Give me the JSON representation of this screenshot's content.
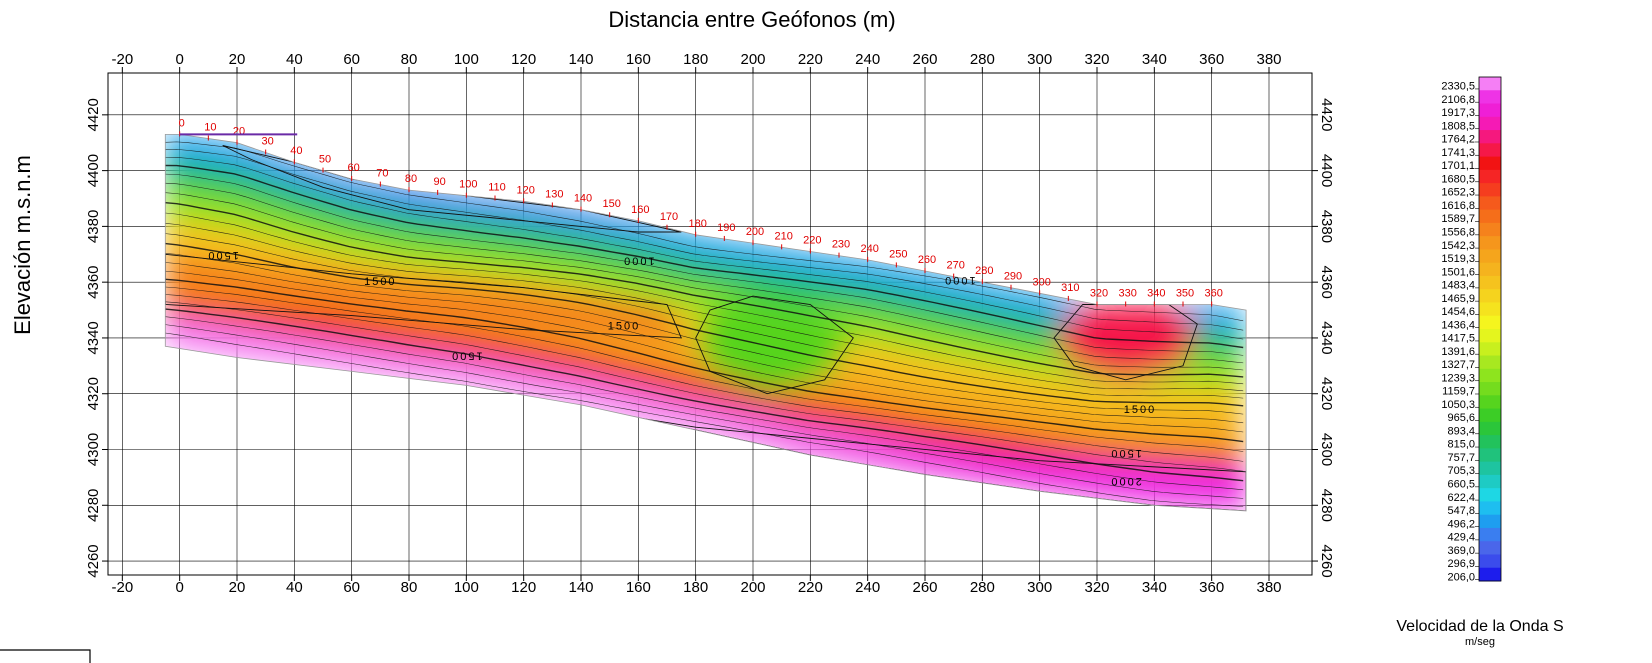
{
  "chart_data": {
    "type": "heatmap",
    "title": "Distancia entre Geófonos (m)",
    "xlabel": "Distancia entre Geófonos (m)",
    "ylabel": "Elevación m.s.n.m",
    "xlim": [
      -25,
      395
    ],
    "ylim": [
      4255,
      4435
    ],
    "xticks": [
      -20,
      0,
      20,
      40,
      60,
      80,
      100,
      120,
      140,
      160,
      180,
      200,
      220,
      240,
      260,
      280,
      300,
      320,
      340,
      360,
      380
    ],
    "yticks": [
      4260,
      4280,
      4300,
      4320,
      4340,
      4360,
      4380,
      4400,
      4420
    ],
    "grid": true,
    "surface": [
      [
        -5,
        4413
      ],
      [
        0,
        4413
      ],
      [
        20,
        4410
      ],
      [
        40,
        4403
      ],
      [
        60,
        4397
      ],
      [
        80,
        4393
      ],
      [
        100,
        4391
      ],
      [
        120,
        4389
      ],
      [
        140,
        4386
      ],
      [
        160,
        4382
      ],
      [
        180,
        4377
      ],
      [
        200,
        4374
      ],
      [
        220,
        4371
      ],
      [
        240,
        4368
      ],
      [
        260,
        4364
      ],
      [
        280,
        4360
      ],
      [
        300,
        4356
      ],
      [
        320,
        4352
      ],
      [
        340,
        4352
      ],
      [
        360,
        4352
      ],
      [
        372,
        4350
      ]
    ],
    "bottom": [
      [
        -5,
        4337
      ],
      [
        20,
        4333
      ],
      [
        60,
        4328
      ],
      [
        100,
        4323
      ],
      [
        140,
        4316
      ],
      [
        180,
        4307
      ],
      [
        220,
        4298
      ],
      [
        260,
        4291
      ],
      [
        300,
        4285
      ],
      [
        340,
        4280
      ],
      [
        372,
        4278
      ]
    ],
    "geophones": [
      {
        "x": 0,
        "label": "0"
      },
      {
        "x": 10,
        "label": "10"
      },
      {
        "x": 20,
        "label": "20"
      },
      {
        "x": 30,
        "label": "30"
      },
      {
        "x": 40,
        "label": "40"
      },
      {
        "x": 50,
        "label": "50"
      },
      {
        "x": 60,
        "label": "60"
      },
      {
        "x": 70,
        "label": "70"
      },
      {
        "x": 80,
        "label": "80"
      },
      {
        "x": 90,
        "label": "90"
      },
      {
        "x": 100,
        "label": "100"
      },
      {
        "x": 110,
        "label": "110"
      },
      {
        "x": 120,
        "label": "120"
      },
      {
        "x": 130,
        "label": "130"
      },
      {
        "x": 140,
        "label": "140"
      },
      {
        "x": 150,
        "label": "150"
      },
      {
        "x": 160,
        "label": "160"
      },
      {
        "x": 170,
        "label": "170"
      },
      {
        "x": 180,
        "label": "180"
      },
      {
        "x": 190,
        "label": "190"
      },
      {
        "x": 200,
        "label": "200"
      },
      {
        "x": 210,
        "label": "210"
      },
      {
        "x": 220,
        "label": "220"
      },
      {
        "x": 230,
        "label": "230"
      },
      {
        "x": 240,
        "label": "240"
      },
      {
        "x": 250,
        "label": "250"
      },
      {
        "x": 260,
        "label": "260"
      },
      {
        "x": 270,
        "label": "270"
      },
      {
        "x": 280,
        "label": "280"
      },
      {
        "x": 290,
        "label": "290"
      },
      {
        "x": 300,
        "label": "300"
      },
      {
        "x": 310,
        "label": "310"
      },
      {
        "x": 320,
        "label": "320"
      },
      {
        "x": 330,
        "label": "330"
      },
      {
        "x": 340,
        "label": "340"
      },
      {
        "x": 350,
        "label": "350"
      },
      {
        "x": 360,
        "label": "360"
      }
    ],
    "velocity_zones": [
      {
        "name": "low-velocity-near-surface",
        "velocity": 450,
        "points": [
          [
            15,
            4409
          ],
          [
            40,
            4403
          ],
          [
            60,
            4397
          ],
          [
            100,
            4391
          ],
          [
            140,
            4386
          ],
          [
            175,
            4378
          ],
          [
            160,
            4378
          ],
          [
            120,
            4382
          ],
          [
            80,
            4386
          ],
          [
            50,
            4394
          ],
          [
            25,
            4404
          ]
        ]
      },
      {
        "name": "high-velocity-band-upper",
        "velocity": 1560,
        "points": [
          [
            -5,
            4370
          ],
          [
            60,
            4363
          ],
          [
            120,
            4358
          ],
          [
            170,
            4352
          ],
          [
            175,
            4340
          ],
          [
            120,
            4343
          ],
          [
            60,
            4348
          ],
          [
            -5,
            4352
          ]
        ]
      },
      {
        "name": "low-velocity-anomaly-200",
        "velocity": 1050,
        "points": [
          [
            185,
            4350
          ],
          [
            200,
            4355
          ],
          [
            220,
            4352
          ],
          [
            235,
            4340
          ],
          [
            225,
            4325
          ],
          [
            205,
            4320
          ],
          [
            185,
            4328
          ],
          [
            180,
            4340
          ]
        ]
      },
      {
        "name": "high-velocity-anomaly-330",
        "velocity": 1750,
        "points": [
          [
            315,
            4352
          ],
          [
            345,
            4352
          ],
          [
            355,
            4345
          ],
          [
            350,
            4330
          ],
          [
            330,
            4325
          ],
          [
            312,
            4330
          ],
          [
            305,
            4340
          ]
        ]
      },
      {
        "name": "deep-high-velocity-layer",
        "velocity": 2200,
        "points": [
          [
            120,
            4318
          ],
          [
            180,
            4308
          ],
          [
            240,
            4302
          ],
          [
            300,
            4296
          ],
          [
            372,
            4292
          ],
          [
            372,
            4278
          ],
          [
            340,
            4280
          ],
          [
            300,
            4285
          ],
          [
            260,
            4291
          ],
          [
            220,
            4298
          ],
          [
            180,
            4307
          ]
        ]
      }
    ],
    "contour_labels": [
      {
        "x": 15,
        "y": 4368,
        "text": "1500",
        "rotate": 180
      },
      {
        "x": 70,
        "y": 4359,
        "text": "1500",
        "rotate": 0
      },
      {
        "x": 100,
        "y": 4332,
        "text": "1500",
        "rotate": 180
      },
      {
        "x": 155,
        "y": 4343,
        "text": "1500",
        "rotate": 0
      },
      {
        "x": 160,
        "y": 4366,
        "text": "1000",
        "rotate": 180
      },
      {
        "x": 272,
        "y": 4359,
        "text": "1000",
        "rotate": 180
      },
      {
        "x": 335,
        "y": 4313,
        "text": "1500",
        "rotate": 0
      },
      {
        "x": 330,
        "y": 4297,
        "text": "1500",
        "rotate": 180
      },
      {
        "x": 330,
        "y": 4287,
        "text": "2000",
        "rotate": 180
      }
    ],
    "colorbar": {
      "title": "Velocidad de la Onda S",
      "unit": "m/seg",
      "values": [
        "2330,5",
        "2106,8",
        "1917,3",
        "1808,5",
        "1764,2",
        "1741,3",
        "1701,1",
        "1680,5",
        "1652,3",
        "1616,8",
        "1589,7",
        "1556,8",
        "1542,3",
        "1519,3",
        "1501,6",
        "1483,4",
        "1465,9",
        "1454,6",
        "1436,4",
        "1417,5",
        "1391,6",
        "1327,7",
        "1239,3",
        "1159,7",
        "1050,3",
        "965,6",
        "893,4",
        "815,0",
        "757,7",
        "705,3",
        "660,5",
        "622,4",
        "547,8",
        "496,2",
        "429,4",
        "369,0",
        "296,9",
        "206,0"
      ],
      "colors": [
        "#f57ff5",
        "#ee33e6",
        "#ef1fd6",
        "#f51ab5",
        "#f5187e",
        "#f51848",
        "#f21313",
        "#f52525",
        "#f53d1f",
        "#f55a1c",
        "#f56e1a",
        "#f5821c",
        "#f5961c",
        "#f5a51c",
        "#f5b31e",
        "#f5c31e",
        "#f5d31e",
        "#f5e31e",
        "#f5f51e",
        "#e4f51e",
        "#c8f01e",
        "#a8e820",
        "#8ee41e",
        "#74dc1e",
        "#56d41e",
        "#3ccd26",
        "#2bc63a",
        "#22c25c",
        "#20c27c",
        "#1ec4a0",
        "#1ecbc4",
        "#1ed7e4",
        "#1ebef0",
        "#1e9ef0",
        "#3a7ef0",
        "#4a66ea",
        "#3b4cec",
        "#1d1ded"
      ]
    }
  }
}
